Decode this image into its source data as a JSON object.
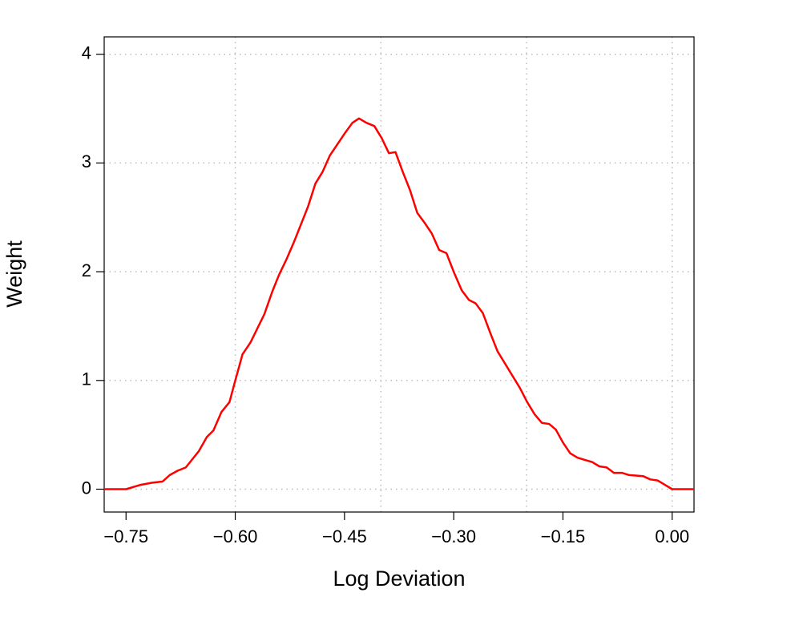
{
  "chart_data": {
    "type": "line",
    "x_label": "Log Deviation",
    "y_label": "Weight",
    "xlim": [
      -0.78,
      0.03
    ],
    "ylim": [
      -0.21,
      4.16
    ],
    "xticks": [
      {
        "value": -0.75,
        "label": "−0.75"
      },
      {
        "value": -0.6,
        "label": "−0.60"
      },
      {
        "value": -0.45,
        "label": "−0.45"
      },
      {
        "value": -0.3,
        "label": "−0.30"
      },
      {
        "value": -0.15,
        "label": "−0.15"
      },
      {
        "value": 0,
        "label": "0.00"
      }
    ],
    "yticks": [
      0,
      1,
      2,
      3,
      4
    ],
    "xgrid": [
      -0.6,
      -0.4,
      -0.2,
      0
    ],
    "grid": true,
    "series": [
      {
        "color": "#ff0000",
        "x": [
          -0.78,
          -0.75,
          -0.73,
          -0.714,
          -0.7,
          -0.69,
          -0.679,
          -0.668,
          -0.65,
          -0.639,
          -0.63,
          -0.619,
          -0.608,
          -0.6,
          -0.59,
          -0.579,
          -0.56,
          -0.549,
          -0.54,
          -0.53,
          -0.519,
          -0.5,
          -0.49,
          -0.48,
          -0.47,
          -0.45,
          -0.439,
          -0.43,
          -0.42,
          -0.409,
          -0.399,
          -0.389,
          -0.38,
          -0.37,
          -0.36,
          -0.35,
          -0.34,
          -0.33,
          -0.32,
          -0.31,
          -0.3,
          -0.289,
          -0.279,
          -0.27,
          -0.26,
          -0.25,
          -0.24,
          -0.23,
          -0.219,
          -0.209,
          -0.199,
          -0.189,
          -0.179,
          -0.169,
          -0.16,
          -0.15,
          -0.14,
          -0.13,
          -0.12,
          -0.11,
          -0.1,
          -0.09,
          -0.08,
          -0.069,
          -0.059,
          -0.05,
          -0.04,
          -0.03,
          -0.02,
          -0.01,
          0,
          0.03
        ],
        "values": [
          0,
          0,
          0.04,
          0.06,
          0.07,
          0.13,
          0.17,
          0.2,
          0.35,
          0.48,
          0.54,
          0.71,
          0.8,
          1.0,
          1.24,
          1.35,
          1.61,
          1.82,
          1.97,
          2.11,
          2.28,
          2.6,
          2.81,
          2.92,
          3.07,
          3.27,
          3.37,
          3.41,
          3.37,
          3.34,
          3.23,
          3.09,
          3.1,
          2.92,
          2.75,
          2.54,
          2.45,
          2.35,
          2.2,
          2.17,
          2.0,
          1.83,
          1.74,
          1.71,
          1.62,
          1.44,
          1.27,
          1.16,
          1.04,
          0.93,
          0.8,
          0.69,
          0.61,
          0.6,
          0.55,
          0.43,
          0.33,
          0.29,
          0.27,
          0.25,
          0.21,
          0.2,
          0.15,
          0.15,
          0.13,
          0.125,
          0.12,
          0.09,
          0.08,
          0.04,
          0,
          0
        ]
      }
    ]
  }
}
